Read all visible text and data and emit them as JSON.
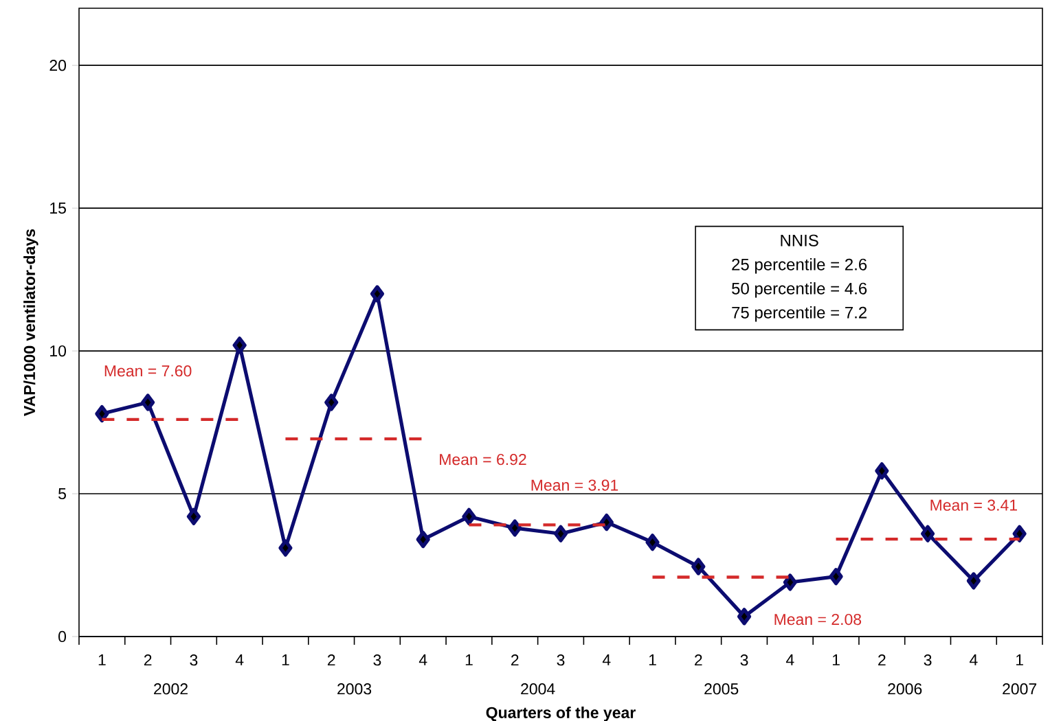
{
  "chart_data": {
    "type": "line",
    "xlabel": "Quarters of the year",
    "ylabel": "VAP/1000 ventilator-days",
    "categories": [
      "1",
      "2",
      "3",
      "4",
      "1",
      "2",
      "3",
      "4",
      "1",
      "2",
      "3",
      "4",
      "1",
      "2",
      "3",
      "4",
      "1",
      "2",
      "3",
      "4",
      "1"
    ],
    "series": [
      {
        "color": "#0c0c70",
        "marker": "diamond",
        "line_style": "solid",
        "values": [
          7.8,
          8.2,
          4.2,
          10.2,
          3.1,
          8.2,
          12.0,
          3.4,
          4.2,
          3.8,
          3.6,
          4.0,
          3.3,
          2.45,
          0.7,
          1.9,
          2.1,
          5.8,
          3.6,
          1.95,
          3.6
        ]
      },
      {
        "name": "Mean = 7.60",
        "color": "#d42a2a",
        "marker": "none",
        "line_style": "dashed",
        "values": [
          7.6,
          7.6,
          7.6,
          7.6,
          null,
          null,
          null,
          null,
          null,
          null,
          null,
          null,
          null,
          null,
          null,
          null,
          null,
          null,
          null,
          null,
          null
        ]
      },
      {
        "name": "Mean = 6.92",
        "color": "#d42a2a",
        "marker": "none",
        "line_style": "dashed",
        "values": [
          null,
          null,
          null,
          null,
          6.92,
          6.92,
          6.92,
          6.92,
          null,
          null,
          null,
          null,
          null,
          null,
          null,
          null,
          null,
          null,
          null,
          null,
          null
        ]
      },
      {
        "name": "Mean = 3.91",
        "color": "#d42a2a",
        "marker": "none",
        "line_style": "dashed",
        "values": [
          null,
          null,
          null,
          null,
          null,
          null,
          null,
          null,
          3.91,
          3.91,
          3.91,
          3.91,
          null,
          null,
          null,
          null,
          null,
          null,
          null,
          null,
          null
        ]
      },
      {
        "name": "Mean = 2.08",
        "color": "#d42a2a",
        "marker": "none",
        "line_style": "dashed",
        "values": [
          null,
          null,
          null,
          null,
          null,
          null,
          null,
          null,
          null,
          null,
          null,
          null,
          2.08,
          2.08,
          2.08,
          2.08,
          null,
          null,
          null,
          null,
          null
        ]
      },
      {
        "name": "Mean = 3.41",
        "color": "#d42a2a",
        "marker": "none",
        "line_style": "dashed",
        "values": [
          null,
          null,
          null,
          null,
          null,
          null,
          null,
          null,
          null,
          null,
          null,
          null,
          null,
          null,
          null,
          null,
          3.41,
          3.41,
          3.41,
          3.41,
          3.41
        ]
      }
    ],
    "ylim": [
      0,
      22
    ],
    "yticks": [
      0,
      5,
      10,
      15,
      20
    ],
    "grid": "y",
    "annotations": [
      "2002",
      "2003",
      "2004",
      "2005",
      "2006",
      "2007",
      "NNIS",
      "25 percentile = 2.6",
      "50 percentile = 4.6",
      "75 percentile = 7.2"
    ]
  }
}
